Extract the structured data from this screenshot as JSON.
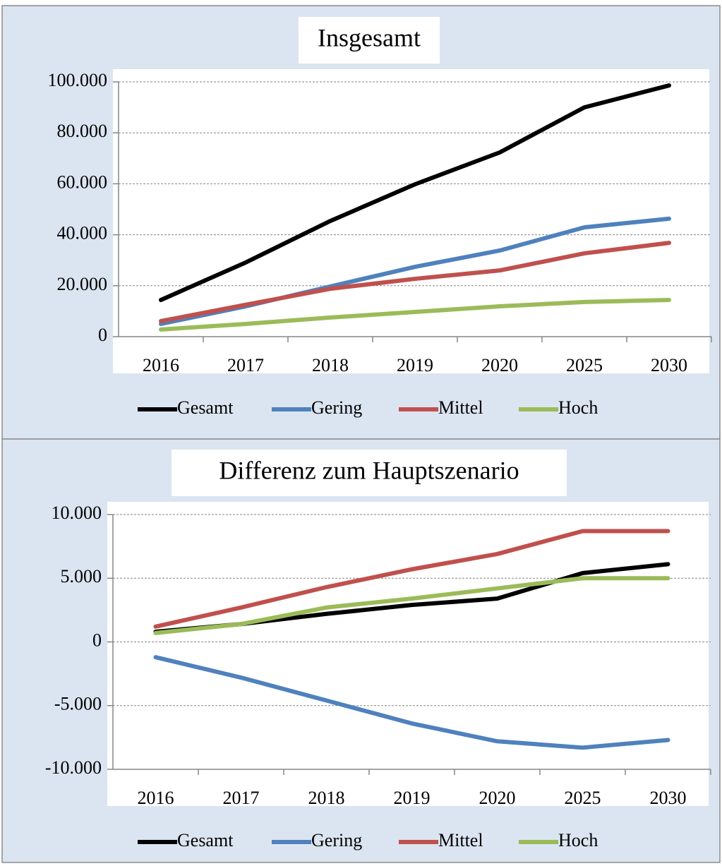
{
  "chart_data": [
    {
      "type": "line",
      "title": "Insgesamt",
      "categories": [
        "2016",
        "2017",
        "2018",
        "2019",
        "2020",
        "2025",
        "2030"
      ],
      "series": [
        {
          "name": "Gesamt",
          "color": "#000000",
          "values": [
            14400,
            29100,
            45400,
            59800,
            72300,
            90000,
            98600
          ]
        },
        {
          "name": "Gering",
          "color": "#4f81bd",
          "values": [
            5000,
            11900,
            19700,
            27400,
            33800,
            42900,
            46300
          ]
        },
        {
          "name": "Mittel",
          "color": "#c0504d",
          "values": [
            6100,
            12500,
            18800,
            22700,
            26000,
            32700,
            36800
          ]
        },
        {
          "name": "Hoch",
          "color": "#9bbb59",
          "values": [
            2800,
            5000,
            7500,
            9700,
            11900,
            13600,
            14400
          ]
        }
      ],
      "ylim": [
        0,
        100000
      ],
      "yticks": [
        0,
        {
          "value": 20000,
          "label": "20.000"
        },
        {
          "value": 40000,
          "label": "40.000"
        },
        {
          "value": 60000,
          "label": "60.000"
        },
        {
          "value": 80000,
          "label": "80.000"
        },
        {
          "value": 100000,
          "label": "100.000"
        }
      ],
      "grid": true,
      "legend": "bottom"
    },
    {
      "type": "line",
      "title": "Differenz zum Hauptszenario",
      "categories": [
        "2016",
        "2017",
        "2018",
        "2019",
        "2020",
        "2025",
        "2030"
      ],
      "series": [
        {
          "name": "Gesamt",
          "color": "#000000",
          "values": [
            800,
            1400,
            2200,
            2900,
            3400,
            5400,
            6100
          ]
        },
        {
          "name": "Gering",
          "color": "#4f81bd",
          "values": [
            -1200,
            -2800,
            -4600,
            -6400,
            -7800,
            -8300,
            -7700
          ]
        },
        {
          "name": "Mittel",
          "color": "#c0504d",
          "values": [
            1200,
            2700,
            4300,
            5700,
            6900,
            8700,
            8700
          ]
        },
        {
          "name": "Hoch",
          "color": "#9bbb59",
          "values": [
            700,
            1400,
            2700,
            3400,
            4200,
            5000,
            5000
          ]
        }
      ],
      "ylim": [
        -10000,
        10000
      ],
      "yticks": [
        {
          "value": -10000,
          "label": "-10.000"
        },
        {
          "value": -5000,
          "label": "-5.000"
        },
        0,
        {
          "value": 5000,
          "label": "5.000"
        },
        {
          "value": 10000,
          "label": "10.000"
        }
      ],
      "grid": true,
      "legend": "bottom"
    }
  ]
}
